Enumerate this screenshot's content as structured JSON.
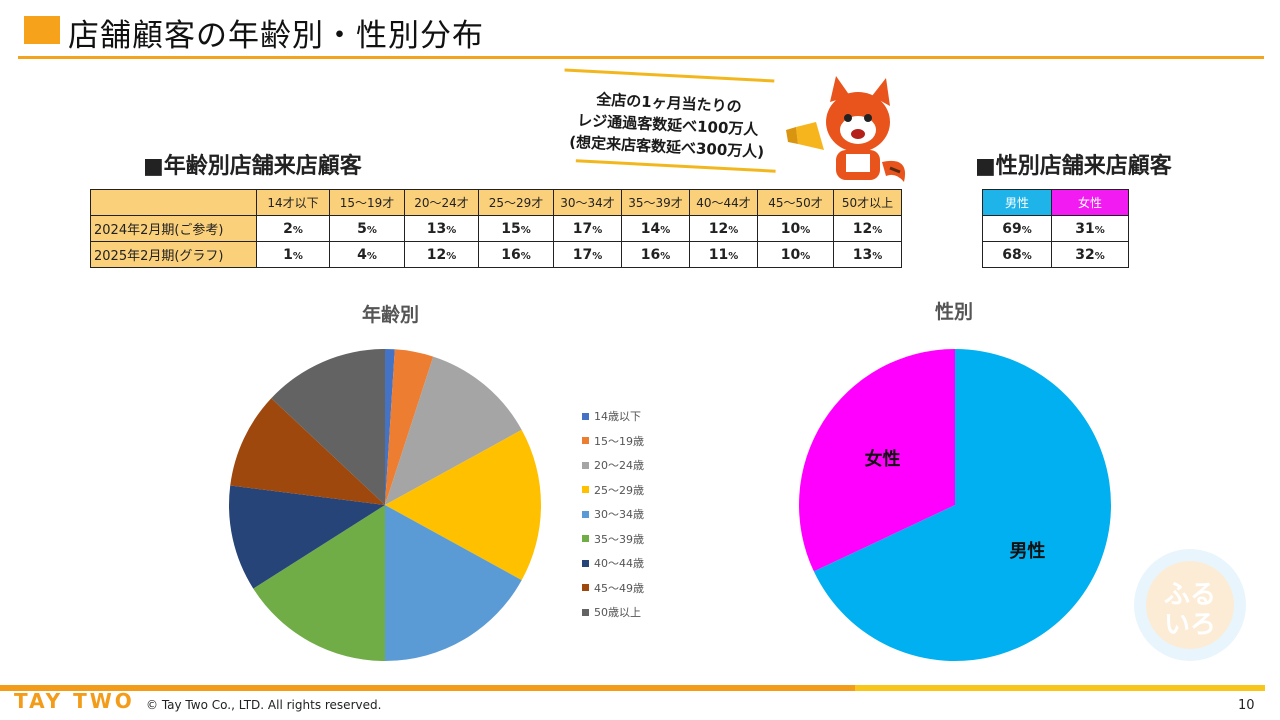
{
  "title": "店舗顧客の年齢別・性別分布",
  "callout": [
    "全店の1ヶ月当たりの",
    "レジ通過客数延べ100万人",
    "(想定来店客数延べ300万人)"
  ],
  "age_section_heading": "■年齢別店舗来店顧客",
  "gender_section_heading": "■性別店舗来店顧客",
  "age_table": {
    "headers": [
      "14才以下",
      "15〜19才",
      "20〜24才",
      "25〜29才",
      "30〜34才",
      "35〜39才",
      "40〜44才",
      "45〜50才",
      "50才以上"
    ],
    "rows": [
      {
        "label": "2024年2月期(ご参考)",
        "values": [
          "2",
          "5",
          "13",
          "15",
          "17",
          "14",
          "12",
          "10",
          "12"
        ]
      },
      {
        "label": "2025年2月期(グラフ)",
        "values": [
          "1",
          "4",
          "12",
          "16",
          "17",
          "16",
          "11",
          "10",
          "13"
        ]
      }
    ],
    "unit": "%"
  },
  "gender_table": {
    "headers": [
      "男性",
      "女性"
    ],
    "rows": [
      {
        "values": [
          "69",
          "31"
        ]
      },
      {
        "values": [
          "68",
          "32"
        ]
      }
    ],
    "unit": "%"
  },
  "chart_data": [
    {
      "type": "pie",
      "title": "年齢別",
      "categories": [
        "14歳以下",
        "15〜19歳",
        "20〜24歳",
        "25〜29歳",
        "30〜34歳",
        "35〜39歳",
        "40〜44歳",
        "45〜49歳",
        "50歳以上"
      ],
      "values": [
        1,
        4,
        12,
        16,
        17,
        16,
        11,
        10,
        13
      ],
      "colors": [
        "#4472c4",
        "#ed7d31",
        "#a5a5a5",
        "#ffc000",
        "#5b9bd5",
        "#70ad47",
        "#264478",
        "#9e480e",
        "#636363"
      ],
      "legend": "right"
    },
    {
      "type": "pie",
      "title": "性別",
      "categories": [
        "男性",
        "女性"
      ],
      "values": [
        68,
        32
      ],
      "colors": [
        "#00b0f0",
        "#ff00ff"
      ],
      "legend": "none"
    }
  ],
  "footer": {
    "logo": "TAY TWO",
    "copyright": "© Tay Two Co., LTD. All rights reserved.",
    "page": "10"
  }
}
